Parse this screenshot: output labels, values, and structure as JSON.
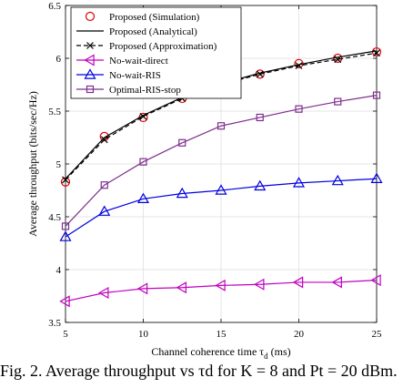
{
  "chart_data": {
    "type": "line",
    "xlabel": "Channel coherence time τ",
    "xlabel_sub": "d",
    "xlabel_unit": " (ms)",
    "ylabel": "Average throughput (bits/sec/Hz)",
    "xlim": [
      5,
      25
    ],
    "ylim": [
      3.5,
      6.5
    ],
    "xticks": [
      5,
      10,
      15,
      20,
      25
    ],
    "yticks": [
      3.5,
      4,
      4.5,
      5,
      5.5,
      6,
      6.5
    ],
    "grid": true,
    "legend_position": "top-left",
    "series": [
      {
        "name": "Proposed (Simulation)",
        "color": "#e00000",
        "marker": "circle",
        "line": "none",
        "x": [
          5,
          7.5,
          10,
          12.5,
          15,
          17.5,
          20,
          22.5,
          25
        ],
        "values": [
          4.83,
          5.26,
          5.44,
          5.62,
          5.78,
          5.85,
          5.95,
          6.0,
          6.06
        ]
      },
      {
        "name": "Proposed (Analytical)",
        "color": "#000000",
        "marker": "none",
        "line": "solid",
        "x": [
          5,
          7.5,
          10,
          12.5,
          15,
          17.5,
          20,
          22.5,
          25
        ],
        "values": [
          4.86,
          5.25,
          5.46,
          5.63,
          5.76,
          5.86,
          5.94,
          6.01,
          6.07
        ]
      },
      {
        "name": "Proposed (Approximation)",
        "color": "#000000",
        "marker": "x",
        "line": "dashed",
        "x": [
          5,
          7.5,
          10,
          12.5,
          15,
          17.5,
          20,
          22.5,
          25
        ],
        "values": [
          4.85,
          5.23,
          5.45,
          5.62,
          5.75,
          5.85,
          5.93,
          5.99,
          6.05
        ]
      },
      {
        "name": "No-wait-direct",
        "color": "#c000c0",
        "marker": "triangle-left",
        "line": "solid",
        "x": [
          5,
          7.5,
          10,
          12.5,
          15,
          17.5,
          20,
          22.5,
          25
        ],
        "values": [
          3.7,
          3.78,
          3.82,
          3.83,
          3.85,
          3.86,
          3.88,
          3.88,
          3.9
        ]
      },
      {
        "name": "No-wait-RIS",
        "color": "#0000e0",
        "marker": "triangle-up",
        "line": "solid",
        "x": [
          5,
          7.5,
          10,
          12.5,
          15,
          17.5,
          20,
          22.5,
          25
        ],
        "values": [
          4.31,
          4.55,
          4.67,
          4.72,
          4.75,
          4.79,
          4.82,
          4.84,
          4.86
        ]
      },
      {
        "name": "Optimal-RIS-stop",
        "color": "#7e2f8e",
        "marker": "square",
        "line": "solid",
        "x": [
          5,
          7.5,
          10,
          12.5,
          15,
          17.5,
          20,
          22.5,
          25
        ],
        "values": [
          4.41,
          4.8,
          5.02,
          5.2,
          5.36,
          5.44,
          5.52,
          5.59,
          5.65
        ]
      }
    ]
  },
  "caption": "Fig. 2.  Average throughput vs τd for K = 8 and Pt = 20 dBm."
}
